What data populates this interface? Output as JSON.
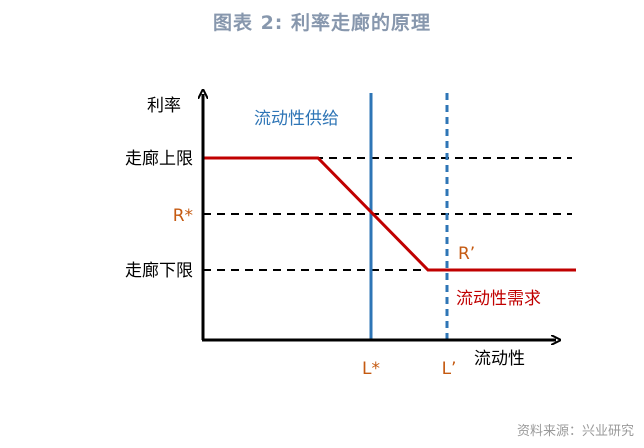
{
  "title": "图表 2:   利率走廊的原理",
  "source": "资料来源：兴业研究",
  "axes": {
    "y_label": "利率",
    "x_label": "流动性"
  },
  "levels": {
    "upper": "走廊上限",
    "equilibrium_rate": "R*",
    "lower": "走廊下限",
    "new_rate": "R’"
  },
  "supply": {
    "label": "流动性供给",
    "equilibrium_label": "L*",
    "shifted_label": "L’"
  },
  "demand": {
    "label": "流动性需求"
  },
  "colors": {
    "demand_curve": "#c00000",
    "supply_line": "#2e75b6",
    "supply_label": "#2e75b6",
    "rate_labels": "#c55a11",
    "axes": "#000000"
  }
}
